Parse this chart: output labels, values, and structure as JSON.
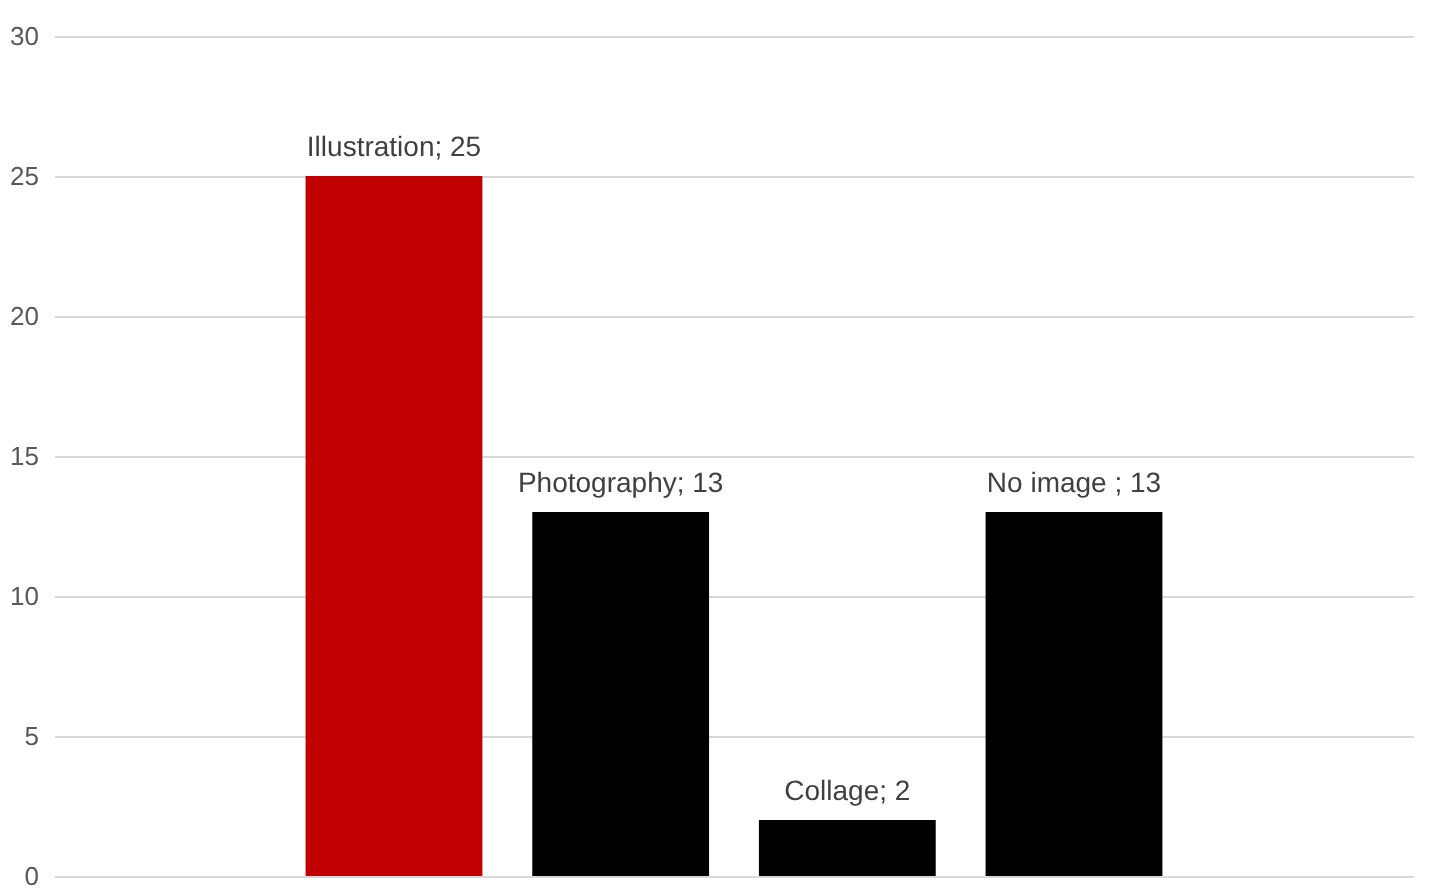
{
  "chart_data": {
    "type": "bar",
    "categories": [
      null,
      null,
      null,
      null,
      null,
      null
    ],
    "values": [
      null,
      25,
      13,
      2,
      13,
      null
    ],
    "colors": [
      "#c00000",
      "#c00000",
      "#000000",
      "#000000",
      "#000000",
      "#000000"
    ],
    "value_labels": [
      null,
      "Illustration; 25",
      "Photography; 13",
      "Collage; 2",
      "No image ; 13",
      null
    ],
    "ylim": [
      0,
      30
    ],
    "yticks": [
      0,
      5,
      10,
      15,
      20,
      25,
      30
    ],
    "grid": "y",
    "tick_labels": "y"
  }
}
